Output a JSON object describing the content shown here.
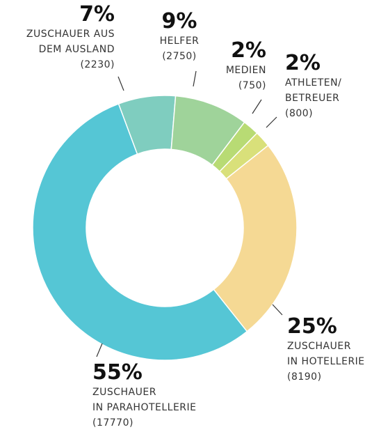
{
  "chart_data": {
    "type": "donut",
    "categories": [
      [
        "ZUSCHAUER AUS",
        "DEM AUSLAND"
      ],
      [
        "HELFER"
      ],
      [
        "MEDIEN"
      ],
      [
        "ATHLETEN/",
        "BETREUER"
      ],
      [
        "ZUSCHAUER",
        "IN HOTELLERIE"
      ],
      [
        "ZUSCHAUER",
        "IN PARAHOTELLERIE"
      ]
    ],
    "values": [
      7,
      9,
      2,
      2,
      25,
      55
    ],
    "value_labels": [
      "7%",
      "9%",
      "2%",
      "2%",
      "25%",
      "55%"
    ],
    "count_labels": [
      "(2230)",
      "(2750)",
      "(750)",
      "(800)",
      "(8190)",
      "(17770)"
    ],
    "colors": [
      "#7fcdbf",
      "#9fd39a",
      "#b8db74",
      "#d9e07a",
      "#f5d994",
      "#55c6d5"
    ]
  }
}
